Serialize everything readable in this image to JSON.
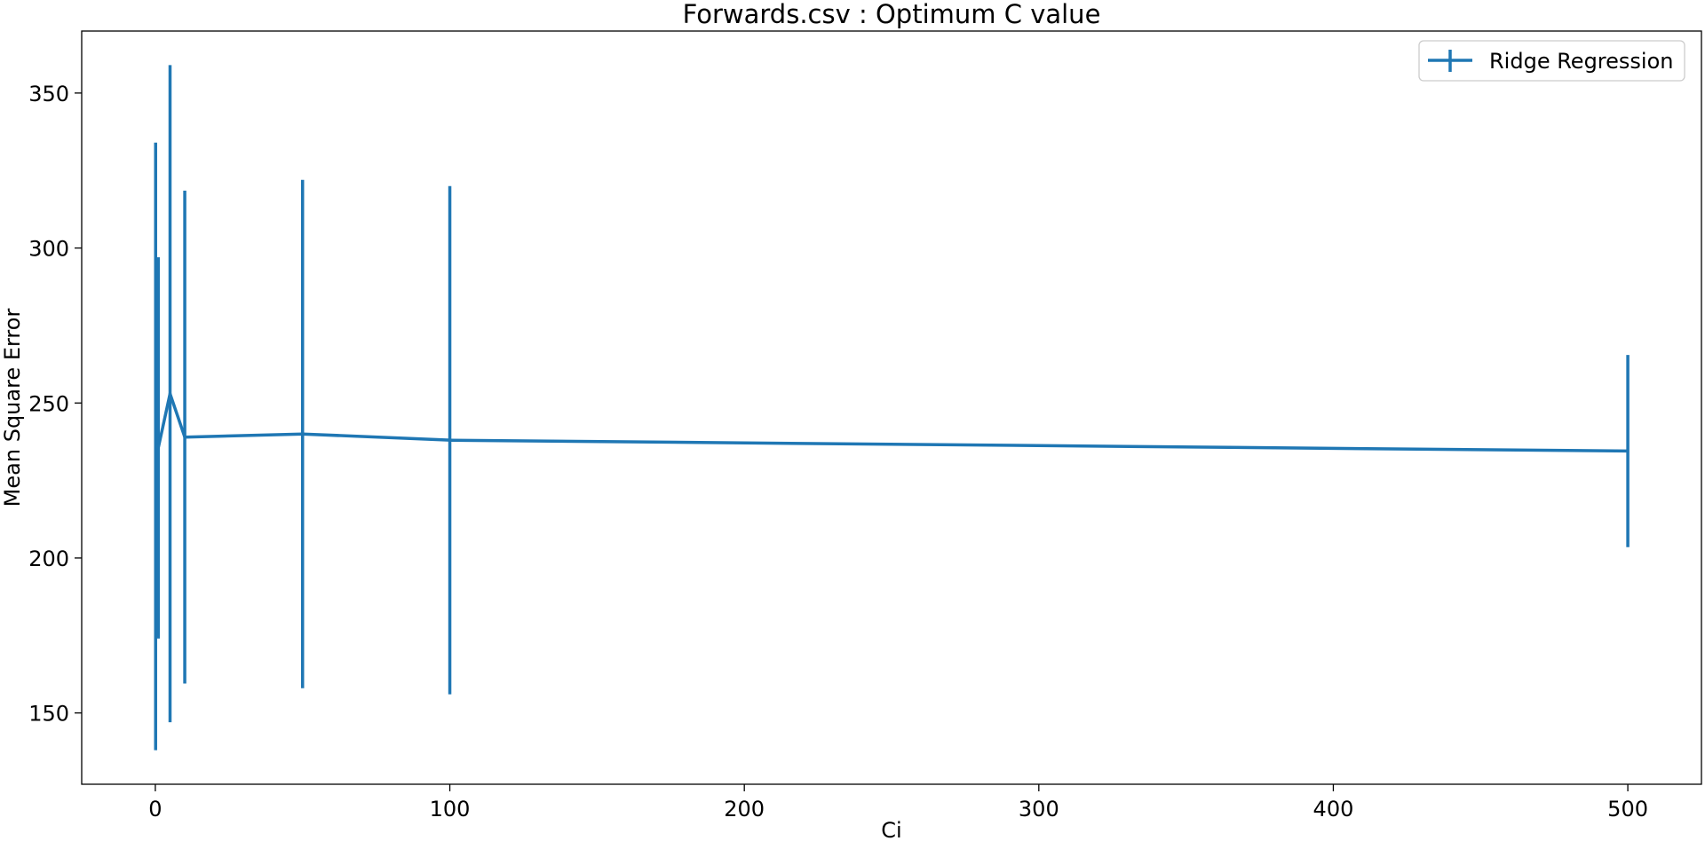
{
  "chart_data": {
    "type": "line",
    "title": "Forwards.csv : Optimum C value",
    "xlabel": "Ci",
    "ylabel": "Mean Square Error",
    "xlim": [
      -25,
      525
    ],
    "ylim": [
      127,
      370
    ],
    "xticks": [
      0,
      100,
      200,
      300,
      400,
      500
    ],
    "yticks": [
      150,
      200,
      250,
      300,
      350
    ],
    "grid": false,
    "legend_position": "top-right",
    "color": "#1f77b4",
    "series": [
      {
        "name": "Ridge Regression",
        "x": [
          0.1,
          1,
          5,
          10,
          50,
          100,
          500
        ],
        "y": [
          236,
          235.5,
          253,
          239,
          240,
          238,
          234.5
        ],
        "yerr": [
          98,
          61.5,
          106,
          79.5,
          82,
          82,
          31
        ]
      }
    ]
  }
}
